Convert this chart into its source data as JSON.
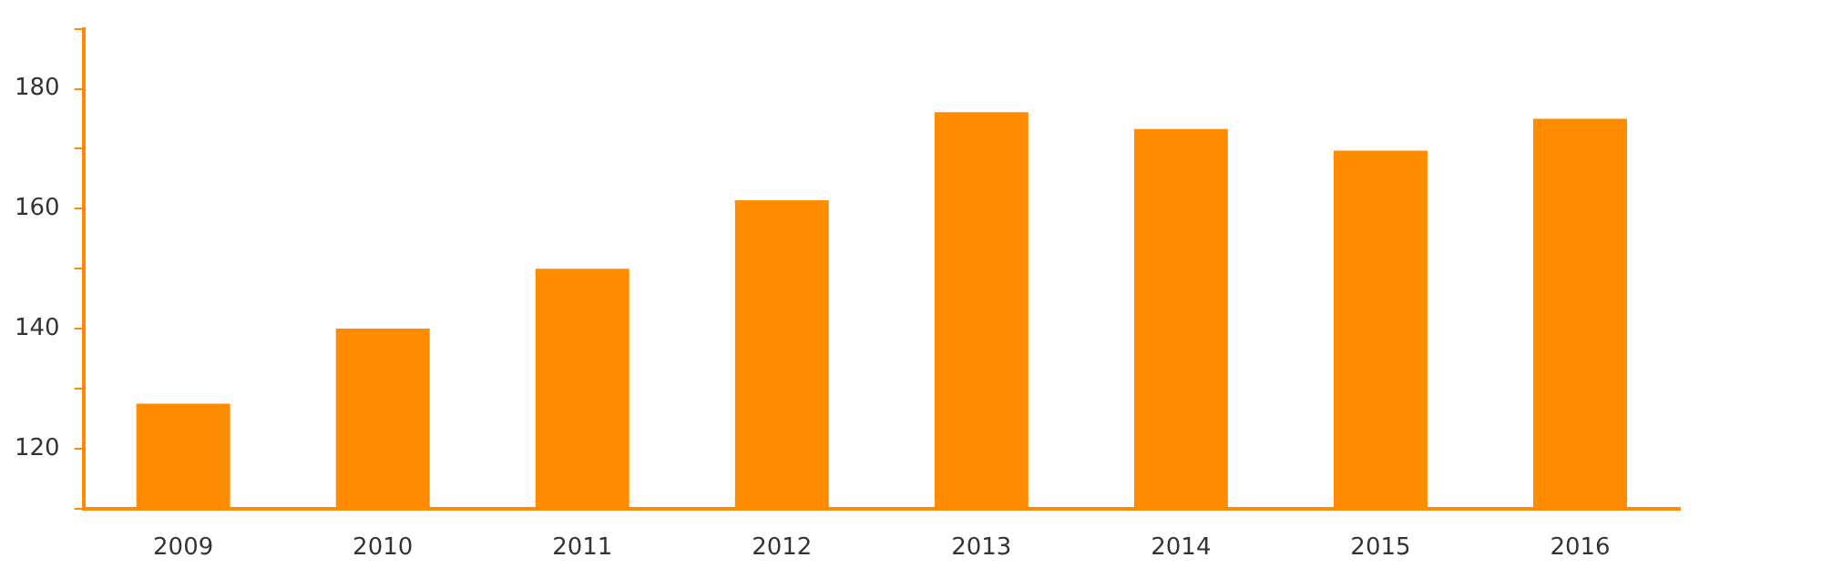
{
  "chart_data": {
    "type": "bar",
    "categories": [
      "2009",
      "2010",
      "2011",
      "2012",
      "2013",
      "2014",
      "2015",
      "2016"
    ],
    "values": [
      127.5,
      140,
      150,
      161.4,
      176.1,
      173.3,
      169.7,
      175
    ],
    "color": "#ff8c00",
    "ylim": [
      110,
      190
    ],
    "yticks": [
      {
        "value": 110,
        "label": null
      },
      120,
      {
        "value": 130,
        "label": null
      },
      140,
      {
        "value": 150,
        "label": null
      },
      160,
      {
        "value": 170,
        "label": null
      },
      180,
      {
        "value": 190,
        "label": null
      }
    ],
    "grid": false,
    "legend": false
  }
}
